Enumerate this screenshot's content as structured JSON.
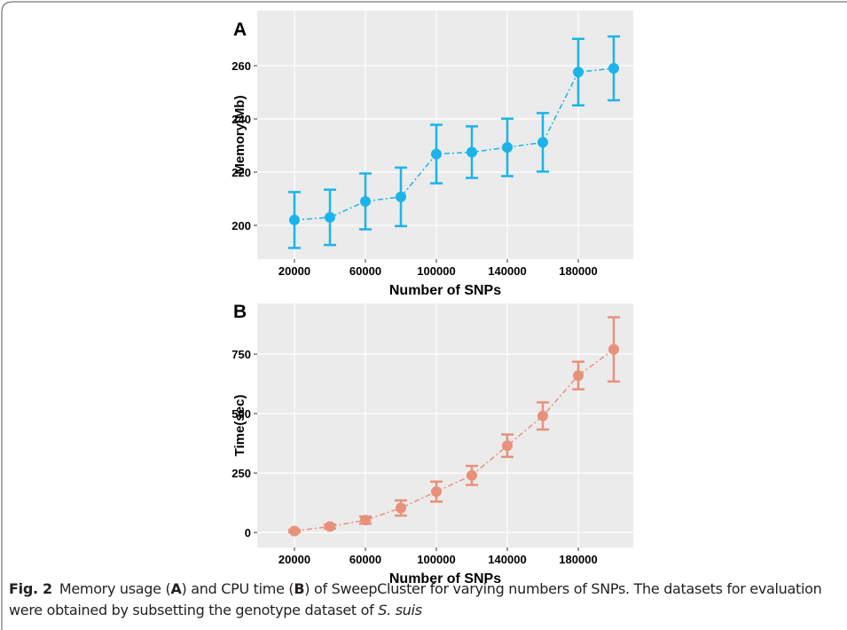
{
  "chart_data": [
    {
      "type": "line",
      "panel_label": "A",
      "x_label": "Number of SNPs",
      "y_label": "Memory(Mb)",
      "x": [
        20000,
        40000,
        60000,
        80000,
        100000,
        120000,
        140000,
        160000,
        180000,
        200000
      ],
      "series": [
        {
          "color": "#1ab4ea",
          "values": [
            202,
            203,
            209,
            210.7,
            226.8,
            227.5,
            229.3,
            231.2,
            257.6,
            259
          ],
          "errors": [
            10.5,
            10.4,
            10.5,
            11,
            11,
            9.7,
            10.8,
            11,
            12.5,
            12
          ]
        }
      ],
      "xlim": [
        -1000,
        211000
      ],
      "xticks": [
        20000,
        60000,
        100000,
        140000,
        180000
      ],
      "ylim": [
        187.3,
        280.7
      ],
      "yticks": [
        200,
        220,
        240,
        260
      ],
      "grid": true
    },
    {
      "type": "line",
      "panel_label": "B",
      "x_label": "Number of SNPs",
      "y_label": "Time(sec)",
      "x": [
        20000,
        40000,
        60000,
        80000,
        100000,
        120000,
        140000,
        160000,
        180000,
        200000
      ],
      "series": [
        {
          "color": "#e8917a",
          "values": [
            6,
            25,
            52,
            103,
            172,
            240,
            365,
            490,
            660,
            770
          ],
          "errors": [
            5,
            8,
            15,
            32,
            42,
            40,
            47,
            57,
            58,
            135
          ]
        }
      ],
      "xlim": [
        -1000,
        211000
      ],
      "xticks": [
        20000,
        60000,
        100000,
        140000,
        180000
      ],
      "ylim": [
        -63,
        963
      ],
      "yticks": [
        0,
        250,
        500,
        750
      ],
      "grid": true
    }
  ],
  "caption": {
    "label": "Fig. 2",
    "parts": [
      "Memory usage (",
      "A",
      ") and CPU time (",
      "B",
      ") of SweepCluster for varying numbers of SNPs. The datasets for evaluation were obtained by subsetting the genotype dataset of ",
      "S. suis"
    ]
  }
}
